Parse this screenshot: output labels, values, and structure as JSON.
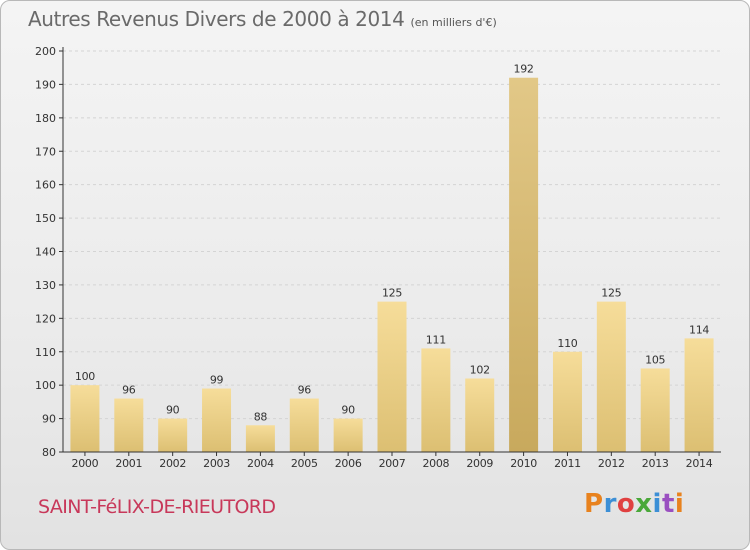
{
  "header": {
    "title": "Autres Revenus Divers de 2000 à 2014",
    "subtitle": "(en milliers d'€)"
  },
  "footer": {
    "place": "SAINT-FéLIX-DE-RIEUTORD",
    "logo_text": "Proxiti",
    "logo_letter_colors": [
      "#e8821e",
      "#3c8fd6",
      "#e04040",
      "#4aa83a",
      "#3c8fd6",
      "#9a4fc0",
      "#e8821e"
    ]
  },
  "chart_data": {
    "type": "bar",
    "title": "Autres Revenus Divers de 2000 à 2014",
    "subtitle": "(en milliers d'€)",
    "categories": [
      "2000",
      "2001",
      "2002",
      "2003",
      "2004",
      "2005",
      "2006",
      "2007",
      "2008",
      "2009",
      "2010",
      "2011",
      "2012",
      "2013",
      "2014"
    ],
    "values": [
      100,
      96,
      90,
      99,
      88,
      96,
      90,
      125,
      111,
      102,
      192,
      110,
      125,
      105,
      114
    ],
    "ylim": [
      80,
      200
    ],
    "yticks": [
      80,
      90,
      100,
      110,
      120,
      130,
      140,
      150,
      160,
      170,
      180,
      190,
      200
    ],
    "grid": true,
    "colors": {
      "bar_light": "#f6dd9a",
      "bar_dark": "#dcbf72",
      "bar_highlight_light": "#e2c887",
      "bar_highlight_dark": "#c8a95d",
      "grid": "#d4d4d4",
      "axis": "#333333",
      "label": "#333333"
    }
  }
}
